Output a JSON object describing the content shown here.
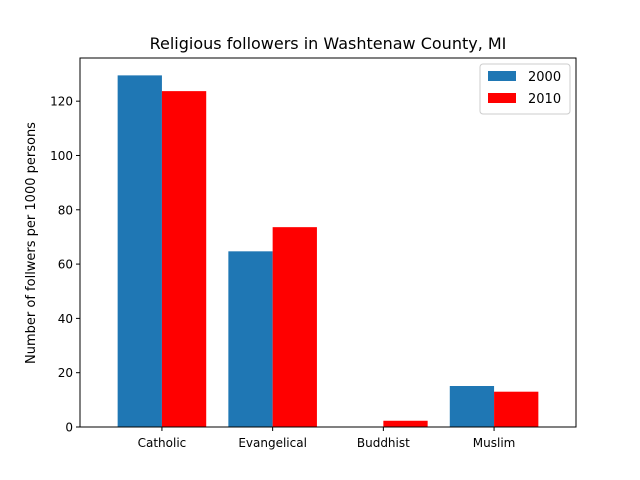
{
  "chart_data": {
    "type": "bar",
    "title": "Religious followers in Washtenaw County, MI",
    "xlabel": "",
    "ylabel": "Number of follwers per 1000 persons",
    "categories": [
      "Catholic",
      "Evangelical",
      "Buddhist",
      "Muslim"
    ],
    "series": [
      {
        "name": "2000",
        "color": "#1f77b4",
        "values": [
          129.5,
          64.7,
          0,
          15.1
        ]
      },
      {
        "name": "2010",
        "color": "#ff0000",
        "values": [
          123.7,
          73.6,
          2.3,
          13.0
        ]
      }
    ],
    "ylim": [
      0,
      135.9
    ],
    "yticks": [
      0,
      20,
      40,
      60,
      80,
      100,
      120
    ],
    "grid": false,
    "legend_position": "upper right"
  }
}
